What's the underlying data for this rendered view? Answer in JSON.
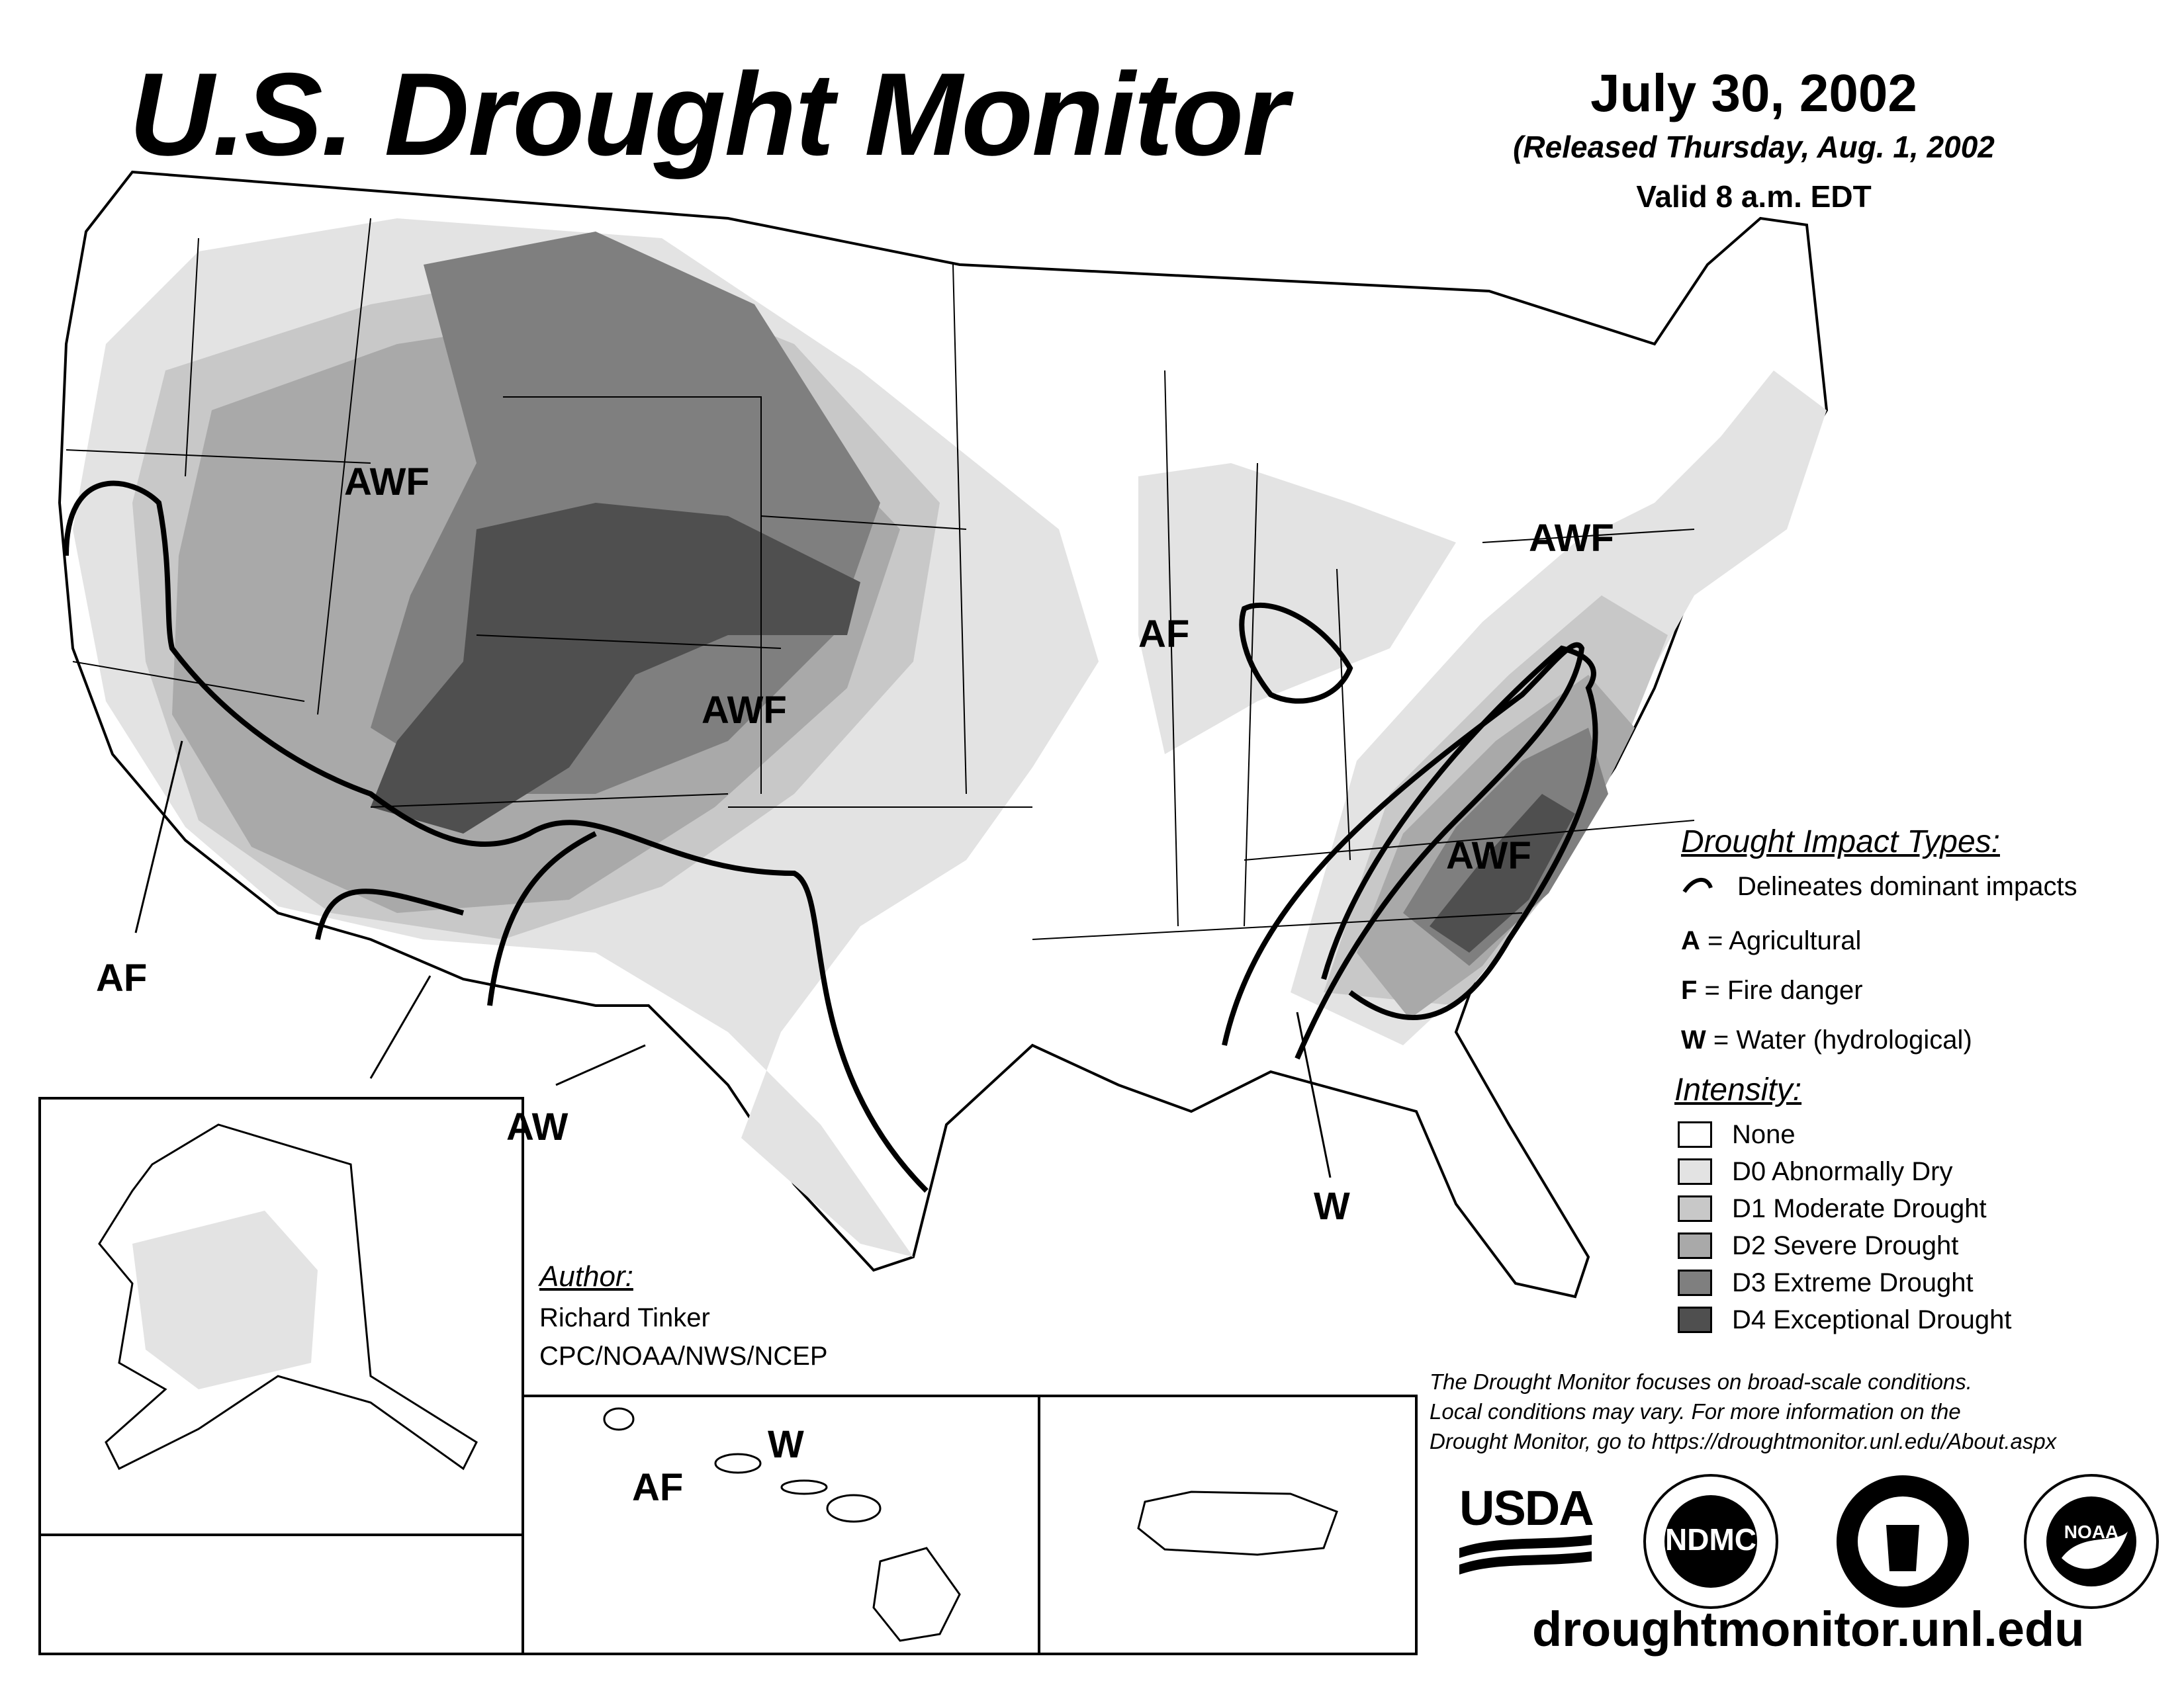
{
  "header": {
    "title": "U.S. Drought Monitor",
    "date": "July 30, 2002",
    "released": "(Released Thursday, Aug. 1, 2002",
    "valid": "Valid 8 a.m. EDT"
  },
  "map_labels": {
    "awf_northwest": "AWF",
    "awf_colorado": "AWF",
    "awf_pennsylvania": "AWF",
    "awf_southeast": "AWF",
    "af_illinois": "AF",
    "af_southwest": "AF",
    "aw_texas": "AW",
    "w_southeast": "W",
    "af_hawaii": "AF",
    "w_hawaii": "W"
  },
  "legend": {
    "impact_heading": "Drought Impact Types:",
    "delineates": "Delineates dominant impacts",
    "impacts": [
      {
        "code": "A",
        "text": " = Agricultural"
      },
      {
        "code": "F",
        "text": " = Fire danger"
      },
      {
        "code": "W",
        "text": " = Water (hydrological)"
      }
    ],
    "intensity_heading": "Intensity:",
    "intensity": [
      {
        "label": "None",
        "color": "#ffffff"
      },
      {
        "label": "D0 Abnormally Dry",
        "color": "#e3e3e3"
      },
      {
        "label": "D1 Moderate Drought",
        "color": "#c8c8c8"
      },
      {
        "label": "D2 Severe Drought",
        "color": "#a9a9a9"
      },
      {
        "label": "D3 Extreme Drought",
        "color": "#7f7f7f"
      },
      {
        "label": "D4 Exceptional Drought",
        "color": "#4f4f4f"
      }
    ]
  },
  "author": {
    "heading": "Author:",
    "name": "Richard Tinker",
    "org": "CPC/NOAA/NWS/NCEP"
  },
  "note": {
    "line1": "The Drought Monitor focuses on broad-scale conditions.",
    "line2": "Local conditions may vary. For more information on the",
    "line3": "Drought Monitor, go to https://droughtmonitor.unl.edu/About.aspx"
  },
  "logos": {
    "usda": "USDA",
    "ndmc": "NDMC",
    "noaa": "NOAA"
  },
  "footer": {
    "site": "droughtmonitor.unl.edu"
  },
  "colors": {
    "none": "#ffffff",
    "d0": "#e3e3e3",
    "d1": "#c8c8c8",
    "d2": "#a9a9a9",
    "d3": "#7f7f7f",
    "d4": "#4f4f4f"
  }
}
